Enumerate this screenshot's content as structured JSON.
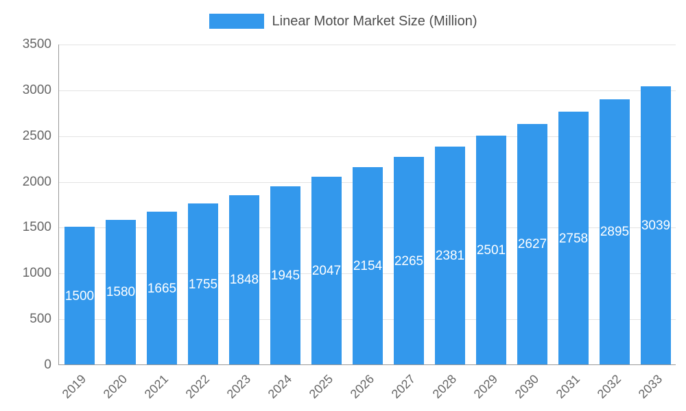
{
  "legend": {
    "label": "Linear Motor Market Size (Million)"
  },
  "chart_data": {
    "type": "bar",
    "title": "Linear Motor Market Size (Million)",
    "categories": [
      "2019",
      "2020",
      "2021",
      "2022",
      "2023",
      "2024",
      "2025",
      "2026",
      "2027",
      "2028",
      "2029",
      "2030",
      "2031",
      "2032",
      "2033"
    ],
    "values": [
      1500,
      1580,
      1665,
      1755,
      1848,
      1945,
      2047,
      2154,
      2265,
      2381,
      2501,
      2627,
      2758,
      2895,
      3039
    ],
    "xlabel": "",
    "ylabel": "",
    "ylim": [
      0,
      3500
    ],
    "yticks": [
      0,
      500,
      1000,
      1500,
      2000,
      2500,
      3000,
      3500
    ],
    "grid": true,
    "legend_position": "top",
    "value_labels": "centered-inside-bars",
    "colors": {
      "bar": "#3398EC",
      "grid": "#E3E3E3",
      "axis": "#999999",
      "tick_text": "#666666",
      "legend_text": "#4D4D4D",
      "value_label": "#FFFFFF",
      "background": "#FFFFFF"
    }
  }
}
